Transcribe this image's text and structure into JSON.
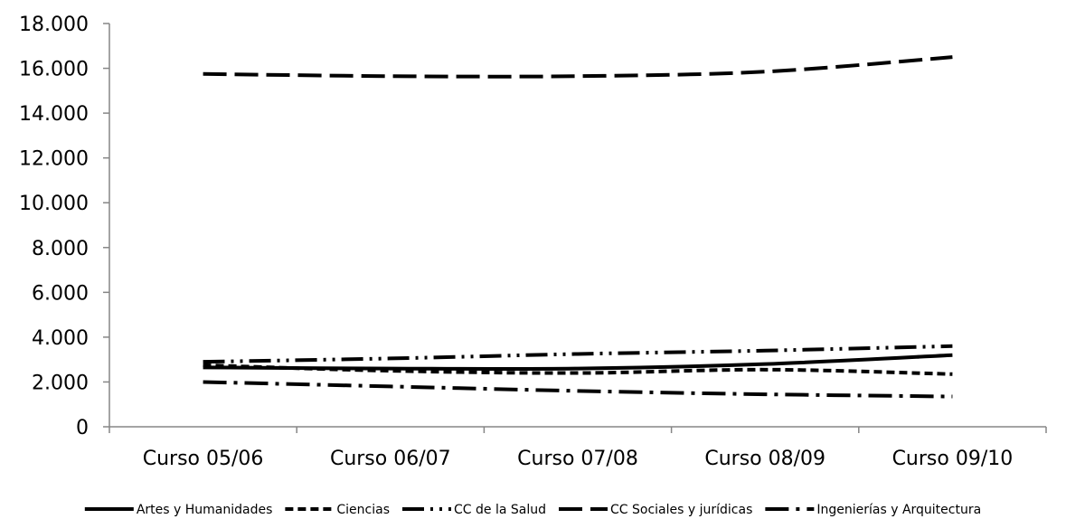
{
  "chart_data": {
    "type": "line",
    "title": "",
    "xlabel": "",
    "ylabel": "",
    "categories": [
      "Curso 05/06",
      "Curso 06/07",
      "Curso 07/08",
      "Curso 08/09",
      "Curso 09/10"
    ],
    "ylim": [
      0,
      18000
    ],
    "yticks": [
      0,
      2000,
      4000,
      6000,
      8000,
      10000,
      12000,
      14000,
      16000,
      18000
    ],
    "ytick_labels": [
      "0",
      "2.000",
      "4.000",
      "6.000",
      "8.000",
      "10.000",
      "12.000",
      "14.000",
      "16.000",
      "18.000"
    ],
    "grid": false,
    "legend_position": "bottom",
    "series": [
      {
        "name": "Artes y Humanidades",
        "values": [
          2650,
          2600,
          2600,
          2800,
          3200
        ],
        "dash": "solid"
      },
      {
        "name": "Ciencias",
        "values": [
          2750,
          2500,
          2400,
          2550,
          2350
        ],
        "dash": "short-dash"
      },
      {
        "name": "CC de la Salud",
        "values": [
          2900,
          3050,
          3250,
          3400,
          3600
        ],
        "dash": "long-dash-dot-dot"
      },
      {
        "name": "CC Sociales y jurídicas",
        "values": [
          15750,
          15650,
          15650,
          15850,
          16500
        ],
        "dash": "long-dash"
      },
      {
        "name": "Ingenierías y Arquitectura",
        "values": [
          2000,
          1800,
          1600,
          1450,
          1350
        ],
        "dash": "long-dash-dot"
      }
    ]
  }
}
